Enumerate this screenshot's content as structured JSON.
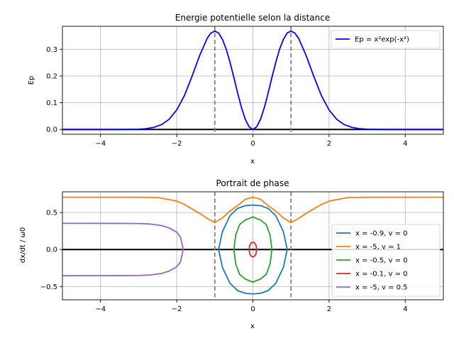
{
  "chart_data": [
    {
      "type": "line",
      "title": "Energie potentielle selon la distance",
      "xlabel": "x",
      "ylabel": "Ep",
      "xlim": [
        -5,
        5
      ],
      "ylim": [
        -0.018,
        0.386
      ],
      "xticks": [
        -4,
        -2,
        0,
        2,
        4
      ],
      "xtick_labels": [
        "−4",
        "−2",
        "0",
        "2",
        "4"
      ],
      "yticks": [
        0.0,
        0.1,
        0.2,
        0.3
      ],
      "ytick_labels": [
        "0.0",
        "0.1",
        "0.2",
        "0.3"
      ],
      "grid": true,
      "legend_position": "top-right",
      "vlines": [
        -1,
        1
      ],
      "hline": 0,
      "series": [
        {
          "name": "Ep = x²exp(-x²)",
          "color": "#0000ff",
          "x": [
            -5.0,
            -3.5,
            -3.0,
            -2.8,
            -2.6,
            -2.4,
            -2.2,
            -2.0,
            -1.8,
            -1.6,
            -1.4,
            -1.2,
            -1.1,
            -1.0,
            -0.9,
            -0.8,
            -0.7,
            -0.6,
            -0.5,
            -0.4,
            -0.3,
            -0.2,
            -0.1,
            0.0,
            0.1,
            0.2,
            0.3,
            0.4,
            0.5,
            0.6,
            0.7,
            0.8,
            0.9,
            1.0,
            1.1,
            1.2,
            1.4,
            1.6,
            1.8,
            2.0,
            2.2,
            2.4,
            2.6,
            2.8,
            3.0,
            3.5,
            5.0
          ],
          "y": [
            0.0,
            0.0,
            0.001,
            0.003,
            0.008,
            0.018,
            0.038,
            0.073,
            0.126,
            0.198,
            0.276,
            0.341,
            0.361,
            0.368,
            0.361,
            0.337,
            0.3,
            0.251,
            0.195,
            0.136,
            0.082,
            0.038,
            0.01,
            0.0,
            0.01,
            0.038,
            0.082,
            0.136,
            0.195,
            0.251,
            0.3,
            0.337,
            0.361,
            0.368,
            0.361,
            0.341,
            0.276,
            0.198,
            0.126,
            0.073,
            0.038,
            0.018,
            0.008,
            0.003,
            0.001,
            0.0,
            0.0
          ]
        }
      ]
    },
    {
      "type": "line",
      "title": "Portrait de phase",
      "xlabel": "x",
      "ylabel": "dx/dt / ω0",
      "xlim": [
        -5,
        5
      ],
      "ylim": [
        -0.68,
        0.78
      ],
      "xticks": [
        -4,
        -2,
        0,
        2,
        4
      ],
      "xtick_labels": [
        "−4",
        "−2",
        "0",
        "2",
        "4"
      ],
      "yticks": [
        -0.5,
        0.0,
        0.5
      ],
      "ytick_labels": [
        "−0.5",
        "0.0",
        "0.5"
      ],
      "grid": true,
      "legend_position": "bottom-right",
      "vlines": [
        -1,
        1
      ],
      "hline": 0,
      "series": [
        {
          "name": "x = -0.9, v = 0",
          "color": "#1f77b4",
          "closed": true,
          "x": [
            -0.9,
            -0.8,
            -0.6,
            -0.4,
            -0.2,
            0.0,
            0.2,
            0.4,
            0.6,
            0.8,
            0.9
          ],
          "y": [
            0.0,
            0.242,
            0.458,
            0.556,
            0.592,
            0.601,
            0.592,
            0.556,
            0.458,
            0.242,
            0.0
          ]
        },
        {
          "name": "x = -5, v = 1",
          "color": "#ff7f0e",
          "closed": false,
          "x": [
            -5.0,
            -3.0,
            -2.5,
            -2.0,
            -1.8,
            -1.6,
            -1.4,
            -1.2,
            -1.0,
            -0.8,
            -0.6,
            -0.4,
            -0.2,
            0.0,
            0.2,
            0.4,
            0.6,
            0.8,
            1.0,
            1.2,
            1.4,
            1.6,
            1.8,
            2.0,
            2.5,
            3.0,
            5.0
          ],
          "y": [
            0.707,
            0.706,
            0.703,
            0.655,
            0.609,
            0.55,
            0.489,
            0.421,
            0.364,
            0.427,
            0.521,
            0.594,
            0.679,
            0.707,
            0.679,
            0.594,
            0.521,
            0.427,
            0.364,
            0.421,
            0.489,
            0.55,
            0.609,
            0.655,
            0.703,
            0.706,
            0.707
          ]
        },
        {
          "name": "x = -0.5, v = 0",
          "color": "#2ca02c",
          "closed": true,
          "x": [
            -0.5,
            -0.45,
            -0.35,
            -0.2,
            0.0,
            0.2,
            0.35,
            0.45,
            0.5
          ],
          "y": [
            0.0,
            0.196,
            0.336,
            0.399,
            0.441,
            0.399,
            0.336,
            0.196,
            0.0
          ]
        },
        {
          "name": "x = -0.1, v = 0",
          "color": "#d62728",
          "closed": true,
          "x": [
            -0.1,
            -0.085,
            -0.05,
            0.0,
            0.05,
            0.085,
            0.1
          ],
          "y": [
            0.0,
            0.053,
            0.087,
            0.1,
            0.087,
            0.053,
            0.0
          ]
        },
        {
          "name": "x = -5, v = 0.5",
          "color": "#9467bd",
          "closed": false,
          "x": [
            -5.0,
            -3.5,
            -3.0,
            -2.7,
            -2.4,
            -2.2,
            -2.0,
            -1.9,
            -1.83,
            -1.9,
            -2.0,
            -2.2,
            -2.4,
            -2.7,
            -3.0,
            -3.5,
            -5.0
          ],
          "y": [
            0.354,
            0.353,
            0.351,
            0.345,
            0.324,
            0.292,
            0.234,
            0.167,
            0.0,
            -0.167,
            -0.234,
            -0.292,
            -0.324,
            -0.345,
            -0.351,
            -0.353,
            -0.354
          ]
        }
      ]
    }
  ]
}
